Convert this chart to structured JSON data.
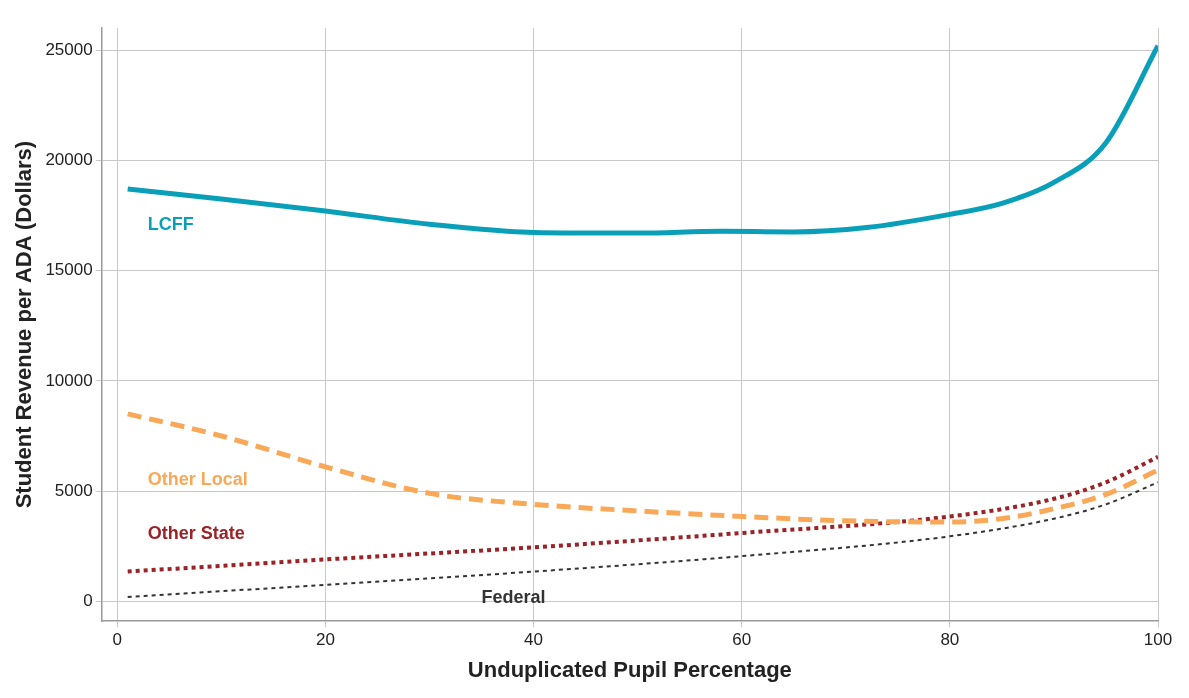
{
  "chart_data": {
    "type": "line",
    "xlabel": "Unduplicated Pupil Percentage",
    "ylabel": "Student Revenue per ADA (Dollars)",
    "xlim": [
      -1.5,
      100
    ],
    "xticks": [
      0,
      20,
      40,
      60,
      80,
      100
    ],
    "ylim": [
      -900,
      26000
    ],
    "yticks": [
      0,
      5000,
      10000,
      15000,
      20000,
      25000
    ],
    "grid": true,
    "legend": false,
    "marker": "none",
    "series": [
      {
        "name": "LCFF",
        "color": "#0a9fb9",
        "line_style": "solid",
        "x": [
          1,
          10,
          20,
          30,
          40,
          50,
          58,
          65,
          72,
          80,
          85,
          90,
          95,
          100
        ],
        "values": [
          18700,
          18250,
          17700,
          17100,
          16730,
          16700,
          16780,
          16750,
          16950,
          17550,
          18050,
          19000,
          20800,
          25200
        ]
      },
      {
        "name": "Other Local",
        "color": "#f9a857",
        "line_style": "dashed",
        "x": [
          1,
          10,
          20,
          30,
          40,
          50,
          60,
          70,
          80,
          85,
          90,
          95,
          100
        ],
        "values": [
          8500,
          7500,
          6100,
          4900,
          4400,
          4100,
          3850,
          3650,
          3600,
          3750,
          4200,
          4850,
          5950
        ]
      },
      {
        "name": "Other State",
        "color": "#9b2226",
        "line_style": "dotted",
        "x": [
          1,
          20,
          40,
          60,
          80,
          90,
          95,
          100
        ],
        "values": [
          1350,
          1900,
          2450,
          3100,
          3850,
          4650,
          5400,
          6550
        ]
      },
      {
        "name": "Federal",
        "color": "#333333",
        "line_style": "dotted",
        "x": [
          1,
          20,
          40,
          60,
          80,
          90,
          95,
          100
        ],
        "values": [
          200,
          750,
          1350,
          2050,
          2950,
          3750,
          4400,
          5400
        ]
      }
    ]
  }
}
